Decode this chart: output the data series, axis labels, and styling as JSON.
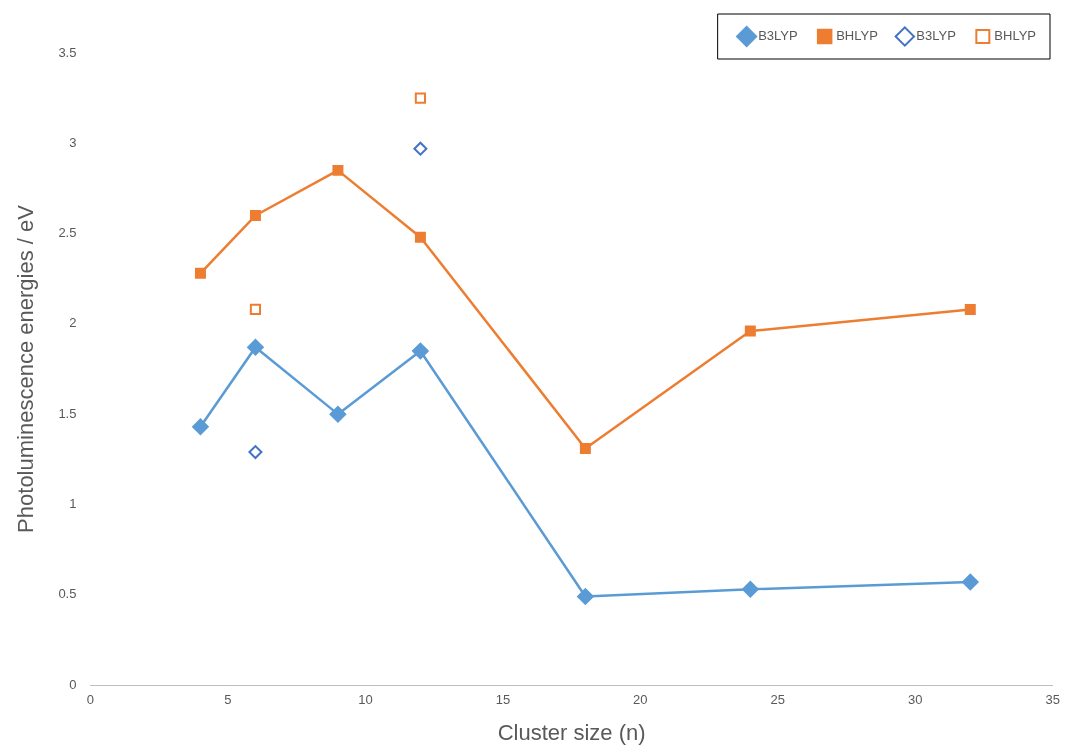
{
  "chart_data": {
    "type": "line",
    "xlabel": "Cluster size ($_{}$n)",
    "ylabel": "Photoluminescence energies / eV",
    "xlim": [
      0,
      35
    ],
    "xticks": [
      0,
      5,
      10,
      15,
      20,
      25,
      30,
      35
    ],
    "ylim": [
      0,
      3.5
    ],
    "yticks": [
      0,
      0.5,
      1,
      1.5,
      2,
      2.5,
      3,
      3.5
    ],
    "grid": false,
    "legend": "top right",
    "series": [
      {
        "name": "B3LYP",
        "type": "line",
        "marker": "diamond",
        "color": "#5b9bd5",
        "x": [
          4,
          6,
          9,
          12,
          18,
          24,
          32
        ],
        "values": [
          1.43,
          1.87,
          1.5,
          1.85,
          0.49,
          0.53,
          0.57
        ]
      },
      {
        "name": "BHLYP",
        "type": "line",
        "marker": "square",
        "color": "#ed7d31",
        "x": [
          4,
          6,
          9,
          12,
          18,
          24,
          32
        ],
        "values": [
          2.28,
          2.6,
          2.85,
          2.48,
          1.31,
          1.96,
          2.08
        ]
      },
      {
        "name": "B3LYP",
        "type": "scatter",
        "marker": "diamond",
        "color": "#4472c4",
        "x": [
          6,
          12
        ],
        "values": [
          1.29,
          2.97
        ]
      },
      {
        "name": "BHLYP",
        "type": "scatter",
        "marker": "square",
        "color": "#ed7d31",
        "x": [
          6,
          12
        ],
        "values": [
          2.08,
          3.25
        ]
      }
    ]
  }
}
